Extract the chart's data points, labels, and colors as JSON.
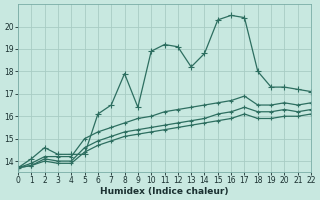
{
  "xlabel": "Humidex (Indice chaleur)",
  "ylabel": "",
  "xlim": [
    0,
    22
  ],
  "ylim": [
    13.5,
    21.0
  ],
  "yticks": [
    14,
    15,
    16,
    17,
    18,
    19,
    20
  ],
  "xticks": [
    0,
    1,
    2,
    3,
    4,
    5,
    6,
    7,
    8,
    9,
    10,
    11,
    12,
    13,
    14,
    15,
    16,
    17,
    18,
    19,
    20,
    21,
    22
  ],
  "background_color": "#c8e8e0",
  "grid_color": "#a8ccc4",
  "line_color": "#2d6e60",
  "series": [
    {
      "x": [
        0,
        1,
        2,
        3,
        4,
        5,
        6,
        7,
        8,
        9,
        10,
        11,
        12,
        13,
        14,
        15,
        16,
        17,
        18,
        19,
        20,
        21,
        22
      ],
      "y": [
        13.7,
        14.1,
        14.6,
        14.3,
        14.3,
        14.3,
        16.1,
        16.5,
        17.9,
        16.4,
        18.9,
        19.2,
        19.1,
        18.2,
        18.8,
        20.3,
        20.5,
        20.4,
        18.0,
        17.3,
        17.3,
        17.2,
        17.1
      ],
      "marker": "+",
      "markersize": 4,
      "linewidth": 0.9
    },
    {
      "x": [
        0,
        1,
        2,
        3,
        4,
        5,
        6,
        7,
        8,
        9,
        10,
        11,
        12,
        13,
        14,
        15,
        16,
        17,
        18,
        19,
        20,
        21,
        22
      ],
      "y": [
        13.7,
        13.9,
        14.2,
        14.2,
        14.2,
        15.0,
        15.3,
        15.5,
        15.7,
        15.9,
        16.0,
        16.2,
        16.3,
        16.4,
        16.5,
        16.6,
        16.7,
        16.9,
        16.5,
        16.5,
        16.6,
        16.5,
        16.6
      ],
      "marker": "+",
      "markersize": 3,
      "linewidth": 0.9
    },
    {
      "x": [
        0,
        1,
        2,
        3,
        4,
        5,
        6,
        7,
        8,
        9,
        10,
        11,
        12,
        13,
        14,
        15,
        16,
        17,
        18,
        19,
        20,
        21,
        22
      ],
      "y": [
        13.7,
        13.8,
        14.1,
        14.0,
        14.0,
        14.6,
        14.9,
        15.1,
        15.3,
        15.4,
        15.5,
        15.6,
        15.7,
        15.8,
        15.9,
        16.1,
        16.2,
        16.4,
        16.2,
        16.2,
        16.3,
        16.2,
        16.3
      ],
      "marker": "+",
      "markersize": 3,
      "linewidth": 0.9
    },
    {
      "x": [
        0,
        1,
        2,
        3,
        4,
        5,
        6,
        7,
        8,
        9,
        10,
        11,
        12,
        13,
        14,
        15,
        16,
        17,
        18,
        19,
        20,
        21,
        22
      ],
      "y": [
        13.7,
        13.8,
        14.0,
        13.9,
        13.9,
        14.4,
        14.7,
        14.9,
        15.1,
        15.2,
        15.3,
        15.4,
        15.5,
        15.6,
        15.7,
        15.8,
        15.9,
        16.1,
        15.9,
        15.9,
        16.0,
        16.0,
        16.1
      ],
      "marker": "+",
      "markersize": 3,
      "linewidth": 0.9
    }
  ]
}
